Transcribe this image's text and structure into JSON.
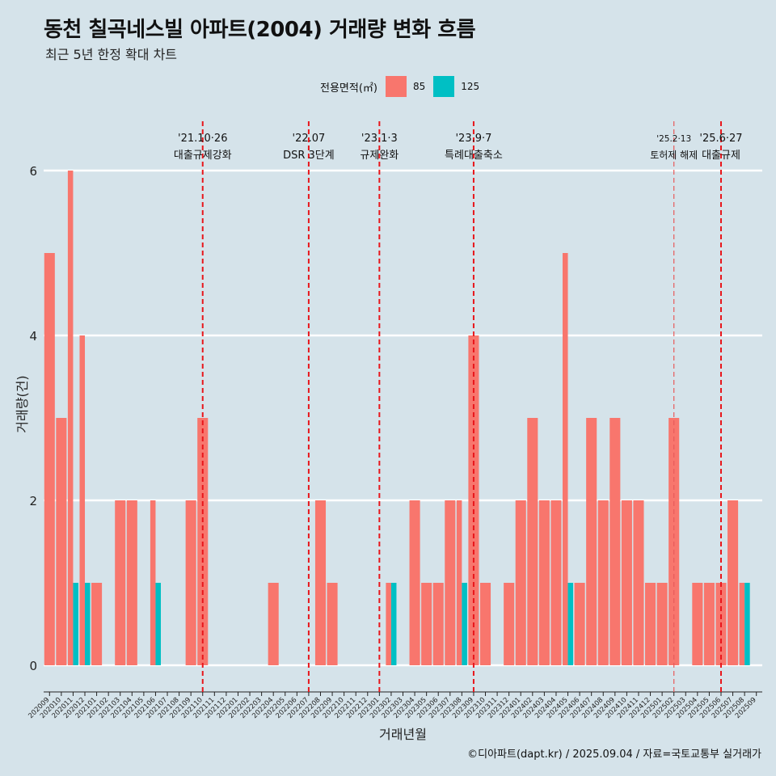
{
  "title": "동천 칠곡네스빌 아파트(2004) 거래량 변화 흐름",
  "subtitle": "최근 5년 한정 확대 차트",
  "caption": "©디아파트(dapt.kr) / 2025.09.04 / 자료=국토교통부 실거래가",
  "legend": {
    "title": "전용면적(㎡)",
    "items": [
      {
        "label": "85",
        "color": "#f8766d"
      },
      {
        "label": "125",
        "color": "#00bfc4"
      }
    ]
  },
  "chart_data": {
    "type": "bar",
    "xlabel": "거래년월",
    "ylabel": "거래량(건)",
    "ylim": [
      0,
      6
    ],
    "yticks": [
      0,
      2,
      4,
      6
    ],
    "grid": true,
    "legend_position": "top",
    "categories": [
      "202009",
      "202010",
      "202011",
      "202012",
      "202101",
      "202102",
      "202103",
      "202104",
      "202105",
      "202106",
      "202107",
      "202108",
      "202109",
      "202110",
      "202111",
      "202112",
      "202201",
      "202202",
      "202203",
      "202204",
      "202205",
      "202206",
      "202207",
      "202208",
      "202209",
      "202210",
      "202211",
      "202212",
      "202301",
      "202302",
      "202303",
      "202304",
      "202305",
      "202306",
      "202307",
      "202308",
      "202309",
      "202310",
      "202311",
      "202312",
      "202401",
      "202402",
      "202403",
      "202404",
      "202405",
      "202406",
      "202407",
      "202408",
      "202409",
      "202410",
      "202411",
      "202412",
      "202501",
      "202502",
      "202503",
      "202504",
      "202505",
      "202506",
      "202507",
      "202508",
      "202509"
    ],
    "series": [
      {
        "name": "85",
        "color": "#f8766d",
        "values": [
          5,
          3,
          6,
          4,
          1,
          0,
          2,
          2,
          0,
          2,
          0,
          0,
          2,
          3,
          0,
          0,
          0,
          0,
          0,
          1,
          0,
          0,
          0,
          2,
          1,
          0,
          0,
          0,
          0,
          1,
          0,
          2,
          1,
          1,
          2,
          2,
          4,
          1,
          0,
          1,
          2,
          3,
          2,
          2,
          5,
          1,
          3,
          2,
          3,
          2,
          2,
          1,
          1,
          3,
          0,
          1,
          1,
          1,
          2,
          1,
          0
        ]
      },
      {
        "name": "125",
        "color": "#00bfc4",
        "values": [
          0,
          0,
          1,
          1,
          0,
          0,
          0,
          0,
          0,
          1,
          0,
          0,
          0,
          0,
          0,
          0,
          0,
          0,
          0,
          0,
          0,
          0,
          0,
          0,
          0,
          0,
          0,
          0,
          0,
          1,
          0,
          0,
          0,
          0,
          0,
          1,
          0,
          0,
          0,
          0,
          0,
          0,
          0,
          0,
          1,
          0,
          0,
          0,
          0,
          0,
          0,
          0,
          0,
          0,
          0,
          0,
          0,
          0,
          0,
          1,
          0
        ]
      }
    ],
    "annotations": [
      {
        "at": "202110",
        "date": "'21.10·26",
        "label": "대출규제강화",
        "style": "major"
      },
      {
        "at": "202207",
        "date": "'22.07",
        "label": "DSR 3단계",
        "style": "major"
      },
      {
        "at": "202301",
        "date": "'23.1·3",
        "label": "규제완화",
        "style": "major"
      },
      {
        "at": "202309",
        "date": "'23.9·7",
        "label": "특례대출축소",
        "style": "major"
      },
      {
        "at": "202502",
        "date": "'25.2·13",
        "label": "토허제 해제",
        "style": "minor"
      },
      {
        "at": "202506",
        "date": "'25.6·27",
        "label": "대출규제",
        "style": "major"
      }
    ]
  }
}
